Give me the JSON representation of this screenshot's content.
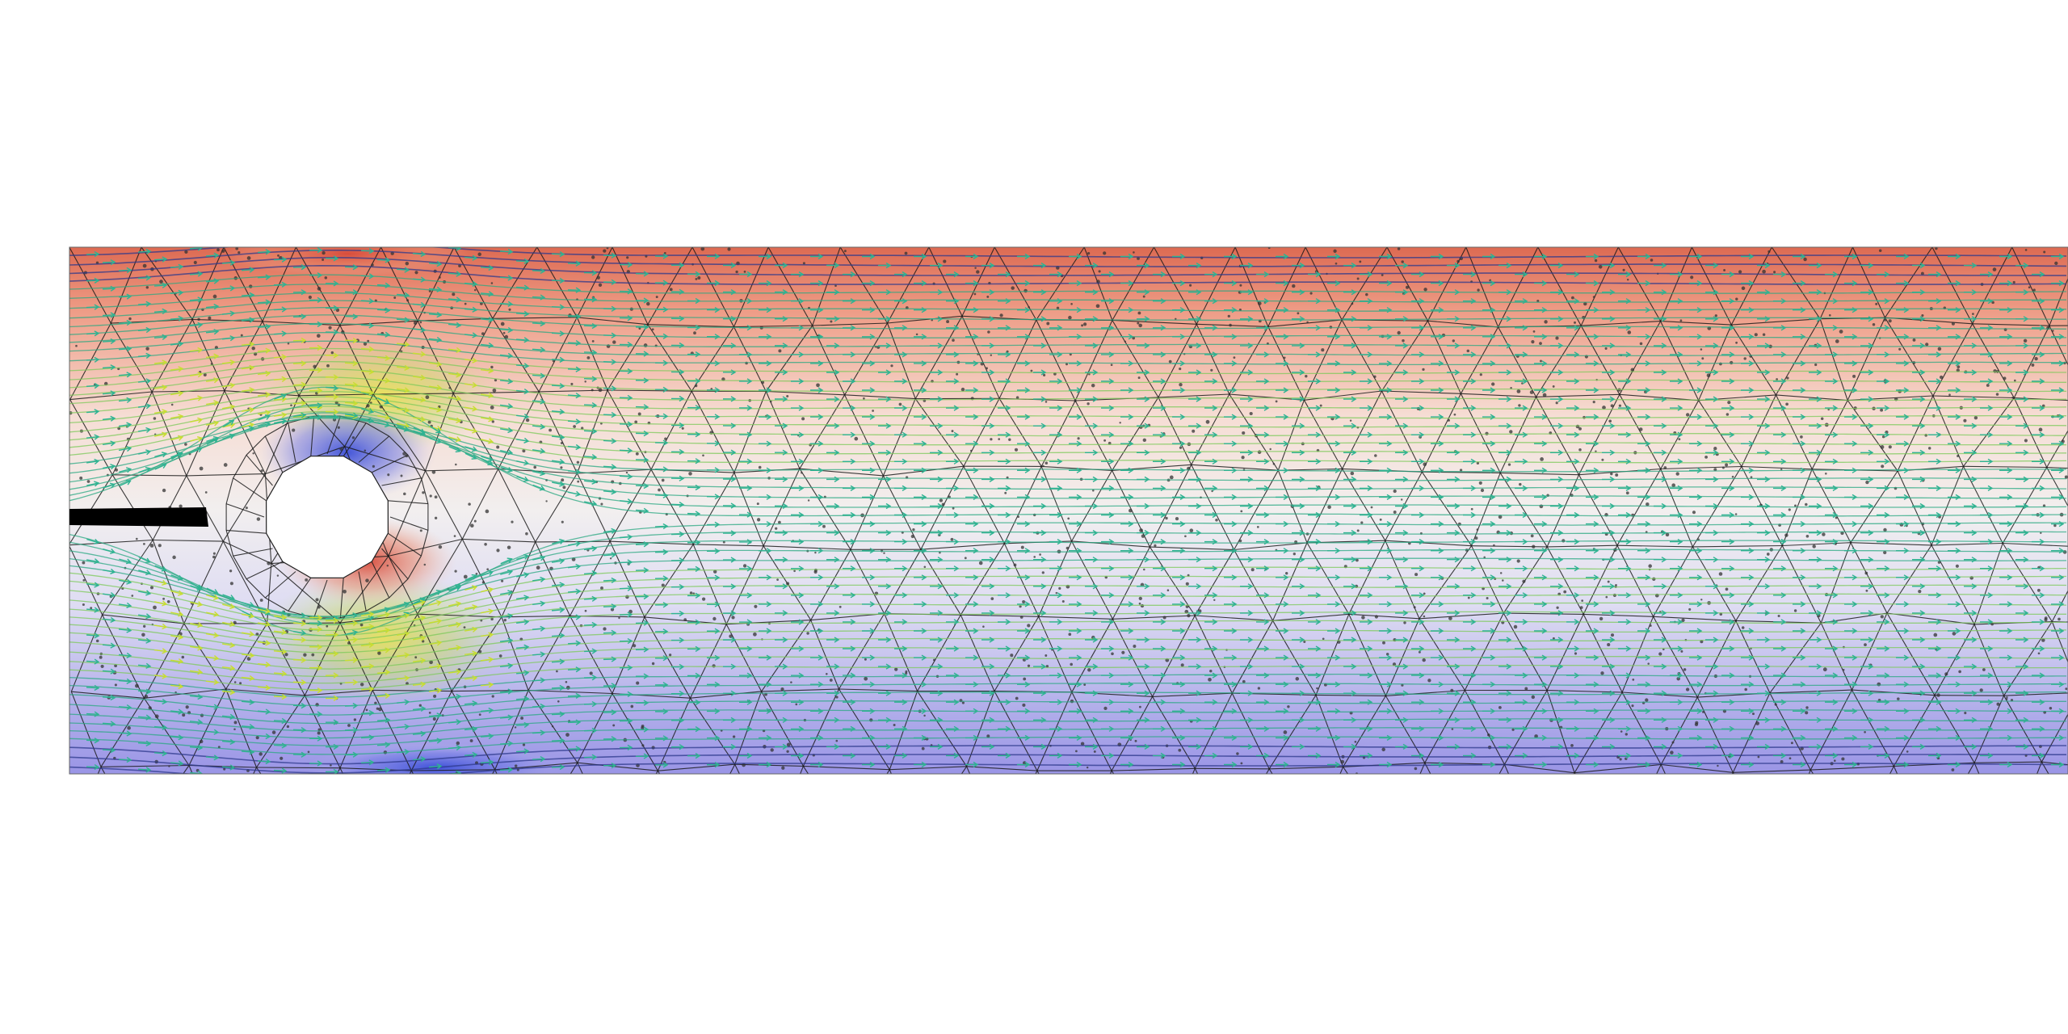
{
  "scene": {
    "colors": {
      "background": "#ffffff",
      "top_boundary": "#dd6a52",
      "mid_channel": "#f2efef",
      "bottom_boundary": "#9a95e6",
      "mesh_edges": "#1a1a1a",
      "mesh_nodes": "#333333",
      "streamline_main": "#2aa882",
      "streamline_fast": "#c8dd32",
      "streamline_slow": "#2d3a8c",
      "obstacle": "#ffffff",
      "inlet_bar": "#000000"
    },
    "layers": [
      "pressure-field",
      "triangular-mesh",
      "mesh-nodes",
      "streamlines",
      "velocity-arrows",
      "cylinder-obstacle",
      "inlet-plate"
    ]
  }
}
